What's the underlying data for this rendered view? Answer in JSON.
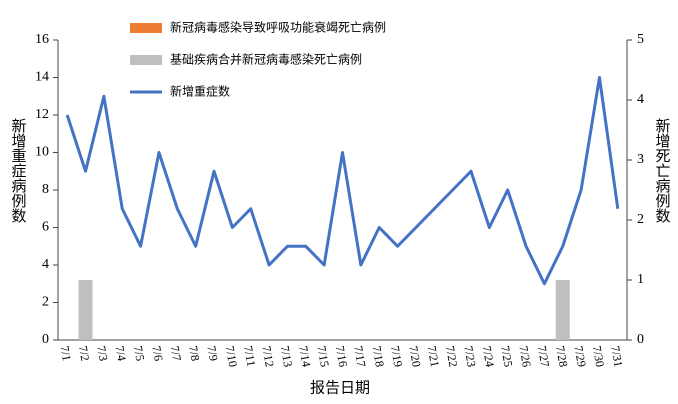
{
  "chart_data": {
    "type": "bar_line",
    "x_label": "报告日期",
    "y_label": "新增重症病例数",
    "y2_label": "新增死亡病例数",
    "categories": [
      "7/1",
      "7/2",
      "7/3",
      "7/4",
      "7/5",
      "7/6",
      "7/7",
      "7/8",
      "7/9",
      "7/10",
      "7/11",
      "7/12",
      "7/13",
      "7/14",
      "7/15",
      "7/16",
      "7/17",
      "7/18",
      "7/19",
      "7/20",
      "7/21",
      "7/22",
      "7/23",
      "7/24",
      "7/25",
      "7/26",
      "7/27",
      "7/28",
      "7/29",
      "7/30",
      "7/31"
    ],
    "series": [
      {
        "name": "新冠病毒感染导致呼吸功能衰竭死亡病例",
        "color": "#ed7d31",
        "kind": "bar",
        "axis": "y2",
        "values": [
          0,
          0,
          0,
          0,
          0,
          0,
          0,
          0,
          0,
          0,
          0,
          0,
          0,
          0,
          0,
          0,
          0,
          0,
          0,
          0,
          0,
          0,
          0,
          0,
          0,
          0,
          0,
          0,
          0,
          0,
          0
        ]
      },
      {
        "name": "基础疾病合并新冠病毒感染死亡病例",
        "color": "#bfbfbf",
        "kind": "bar",
        "axis": "y2",
        "values": [
          0,
          1,
          0,
          0,
          0,
          0,
          0,
          0,
          0,
          0,
          0,
          0,
          0,
          0,
          0,
          0,
          0,
          0,
          0,
          0,
          0,
          0,
          0,
          0,
          0,
          0,
          0,
          1,
          0,
          0,
          0
        ]
      },
      {
        "name": "新增重症数",
        "color": "#4472c4",
        "kind": "line",
        "values": [
          12,
          9,
          13,
          7,
          5,
          10,
          7,
          5,
          9,
          6,
          7,
          4,
          5,
          5,
          4,
          10,
          4,
          6,
          5,
          6,
          7,
          8,
          9,
          6,
          8,
          5,
          3,
          5,
          8,
          14,
          7
        ]
      }
    ],
    "ylim": [
      0,
      16
    ],
    "yticks": [
      0,
      2,
      4,
      6,
      8,
      10,
      12,
      14,
      16
    ],
    "y2lim": [
      0,
      5
    ],
    "y2ticks": [
      0,
      1,
      2,
      3,
      4,
      5
    ]
  }
}
